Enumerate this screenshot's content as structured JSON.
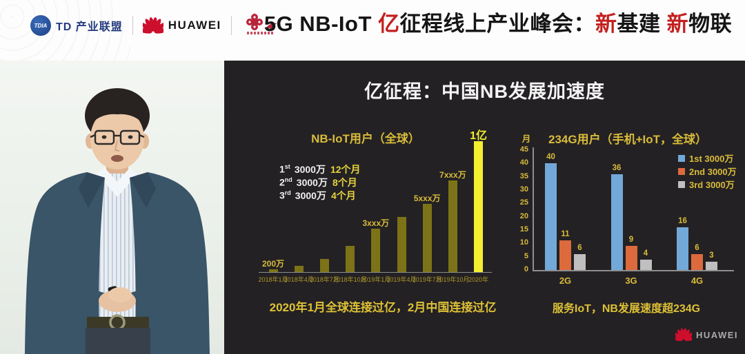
{
  "header": {
    "tdia": {
      "badge": "TDIA",
      "label": "TD 产业联盟"
    },
    "huawei_label": "HUAWEI",
    "accent_red": "#c3201f",
    "title_segments": [
      {
        "text": "5G NB-IoT ",
        "red": false
      },
      {
        "text": "亿",
        "red": true
      },
      {
        "text": "征程线上产业峰会：",
        "red": false
      },
      {
        "text": "新",
        "red": true
      },
      {
        "text": "基建 ",
        "red": false
      },
      {
        "text": "新",
        "red": true
      },
      {
        "text": "物联",
        "red": false
      }
    ]
  },
  "slide": {
    "title": "亿征程：中国NB发展加速度",
    "caption_left": "2020年1月全球连接过亿，2月中国连接过亿",
    "caption_right": "服务IoT，NB发展速度超234G",
    "footer_logo_label": "HUAWEI",
    "bg": "#242124"
  },
  "chart_data": [
    {
      "type": "bar",
      "title": "NB-IoT用户（全球）",
      "categories": [
        "2018年1月",
        "2018年4月",
        "2018年7月",
        "2018年10月",
        "2019年1月",
        "2019年4月",
        "2019年7月",
        "2019年10月",
        "2020年"
      ],
      "values": [
        200,
        500,
        1000,
        2000,
        3300,
        4200,
        5200,
        7000,
        10000
      ],
      "unit": "万",
      "ylim": [
        0,
        10000
      ],
      "bar_labels": [
        "200万",
        "",
        "",
        "",
        "3xxx万",
        "",
        "5xxx万",
        "7xxx万",
        "1亿"
      ],
      "highlight_index": 8,
      "colors": {
        "bar": "#7c7318",
        "highlight": "#f4ef2f",
        "label": "#d8bc3a",
        "axis": "#8f8f8f"
      },
      "annotations": [
        {
          "ordinal": "1",
          "suffix": "st",
          "amount": "3000万",
          "duration": "12个月"
        },
        {
          "ordinal": "2",
          "suffix": "nd",
          "amount": "3000万",
          "duration": "8个月"
        },
        {
          "ordinal": "3",
          "suffix": "rd",
          "amount": "3000万",
          "duration": "4个月"
        }
      ],
      "grid": false
    },
    {
      "type": "grouped-bar",
      "title": "234G用户（手机+IoT，全球）",
      "ylabel": "月",
      "categories": [
        "2G",
        "3G",
        "4G"
      ],
      "series": [
        {
          "name": "1st 3000万",
          "color": "#72a9d8",
          "values": [
            40,
            36,
            16
          ]
        },
        {
          "name": "2nd 3000万",
          "color": "#dc6a3c",
          "values": [
            11,
            9,
            6
          ]
        },
        {
          "name": "3rd 3000万",
          "color": "#bfbfbf",
          "values": [
            6,
            4,
            3
          ]
        }
      ],
      "ylim": [
        0,
        45
      ],
      "yticks": [
        0,
        5,
        10,
        15,
        20,
        25,
        30,
        35,
        40,
        45
      ],
      "legend_position": "top-right",
      "grid": false
    }
  ]
}
